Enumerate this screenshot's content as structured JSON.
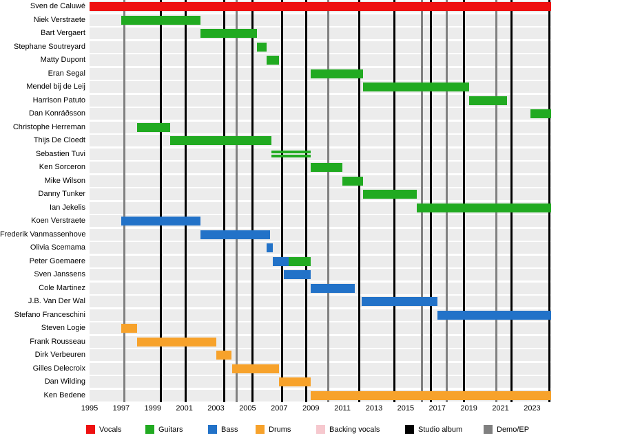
{
  "chart_data": {
    "type": "timeline",
    "x_axis": {
      "min": 1995,
      "max": 2024.2,
      "ticks": [
        1995,
        1997,
        1999,
        2001,
        2003,
        2005,
        2007,
        2009,
        2011,
        2013,
        2015,
        2017,
        2019,
        2021,
        2023
      ]
    },
    "legend": [
      {
        "id": "vocals",
        "label": "Vocals",
        "color": "#ee1111"
      },
      {
        "id": "guitars",
        "label": "Guitars",
        "color": "#21aa21"
      },
      {
        "id": "bass",
        "label": "Bass",
        "color": "#2272c8"
      },
      {
        "id": "drums",
        "label": "Drums",
        "color": "#f7a22b"
      },
      {
        "id": "backing",
        "label": "Backing vocals",
        "color": "#f6c8ce"
      },
      {
        "id": "album",
        "label": "Studio album",
        "color": "#000000"
      },
      {
        "id": "demo",
        "label": "Demo/EP",
        "color": "#808080"
      }
    ],
    "members": [
      {
        "name": "Sven de Caluwé",
        "bars": [
          {
            "role": "vocals",
            "start": 1995,
            "end": 2024.2
          }
        ]
      },
      {
        "name": "Niek Verstraete",
        "bars": [
          {
            "role": "guitars",
            "start": 1997,
            "end": 2002
          }
        ]
      },
      {
        "name": "Bart Vergaert",
        "bars": [
          {
            "role": "guitars",
            "start": 2002,
            "end": 2005.6
          }
        ]
      },
      {
        "name": "Stephane Soutreyard",
        "bars": [
          {
            "role": "guitars",
            "start": 2005.6,
            "end": 2006.2
          }
        ]
      },
      {
        "name": "Matty Dupont",
        "bars": [
          {
            "role": "guitars",
            "start": 2006.2,
            "end": 2007
          }
        ]
      },
      {
        "name": "Eran Segal",
        "bars": [
          {
            "role": "guitars",
            "start": 2009,
            "end": 2012.3
          }
        ]
      },
      {
        "name": "Mendel bij de Leij",
        "bars": [
          {
            "role": "guitars",
            "start": 2012.3,
            "end": 2019
          }
        ]
      },
      {
        "name": "Harrison Patuto",
        "bars": [
          {
            "role": "guitars",
            "start": 2019,
            "end": 2021.4
          }
        ]
      },
      {
        "name": "Dan Konráðsson",
        "bars": [
          {
            "role": "guitars",
            "start": 2022.9,
            "end": 2024.2
          }
        ]
      },
      {
        "name": "Christophe Herreman",
        "bars": [
          {
            "role": "guitars",
            "start": 1998,
            "end": 2000.1
          }
        ]
      },
      {
        "name": "Thijs De Cloedt",
        "bars": [
          {
            "role": "guitars",
            "start": 2000.1,
            "end": 2006.5
          }
        ]
      },
      {
        "name": "Sebastien Tuvi",
        "bars": [
          {
            "role": "guitars",
            "start": 2006.5,
            "end": 2009,
            "style": "double"
          }
        ]
      },
      {
        "name": "Ken Sorceron",
        "bars": [
          {
            "role": "guitars",
            "start": 2009,
            "end": 2011
          }
        ]
      },
      {
        "name": "Mike Wilson",
        "bars": [
          {
            "role": "guitars",
            "start": 2011,
            "end": 2012.3
          }
        ]
      },
      {
        "name": "Danny Tunker",
        "bars": [
          {
            "role": "guitars",
            "start": 2012.3,
            "end": 2015.7
          }
        ]
      },
      {
        "name": "Ian Jekelis",
        "bars": [
          {
            "role": "guitars",
            "start": 2015.7,
            "end": 2024.2
          }
        ]
      },
      {
        "name": "Koen Verstraete",
        "bars": [
          {
            "role": "bass",
            "start": 1997,
            "end": 2002
          }
        ]
      },
      {
        "name": "Frederik Vanmassenhove",
        "bars": [
          {
            "role": "bass",
            "start": 2002,
            "end": 2006.4
          }
        ]
      },
      {
        "name": "Olivia Scemama",
        "bars": [
          {
            "role": "bass",
            "start": 2006.2,
            "end": 2006.6
          }
        ]
      },
      {
        "name": "Peter Goemaere",
        "bars": [
          {
            "role": "bass",
            "start": 2006.6,
            "end": 2007.6
          },
          {
            "role": "guitars",
            "start": 2007.6,
            "end": 2009
          }
        ]
      },
      {
        "name": "Sven Janssens",
        "bars": [
          {
            "role": "bass",
            "start": 2007.3,
            "end": 2009
          }
        ]
      },
      {
        "name": "Cole Martinez",
        "bars": [
          {
            "role": "bass",
            "start": 2009,
            "end": 2011.8
          }
        ]
      },
      {
        "name": "J.B. Van Der Wal",
        "bars": [
          {
            "role": "bass",
            "start": 2012.2,
            "end": 2017
          }
        ]
      },
      {
        "name": "Stefano Franceschini",
        "bars": [
          {
            "role": "bass",
            "start": 2017,
            "end": 2024.2
          }
        ]
      },
      {
        "name": "Steven Logie",
        "bars": [
          {
            "role": "drums",
            "start": 1997,
            "end": 1998
          }
        ]
      },
      {
        "name": "Frank Rousseau",
        "bars": [
          {
            "role": "drums",
            "start": 1998,
            "end": 2003
          }
        ]
      },
      {
        "name": "Dirk Verbeuren",
        "bars": [
          {
            "role": "drums",
            "start": 2003,
            "end": 2004
          }
        ]
      },
      {
        "name": "Gilles Delecroix",
        "bars": [
          {
            "role": "drums",
            "start": 2004,
            "end": 2007
          }
        ]
      },
      {
        "name": "Dan Wilding",
        "bars": [
          {
            "role": "drums",
            "start": 2007,
            "end": 2009
          }
        ]
      },
      {
        "name": "Ken Bedene",
        "bars": [
          {
            "role": "drums",
            "start": 2009,
            "end": 2024.2
          }
        ]
      }
    ],
    "releases": [
      {
        "year": 1997.2,
        "type": "demo"
      },
      {
        "year": 1999.5,
        "type": "album"
      },
      {
        "year": 2001.1,
        "type": "album"
      },
      {
        "year": 2003.5,
        "type": "album"
      },
      {
        "year": 2004.3,
        "type": "demo"
      },
      {
        "year": 2005.3,
        "type": "album"
      },
      {
        "year": 2007.2,
        "type": "album"
      },
      {
        "year": 2008.7,
        "type": "album"
      },
      {
        "year": 2010.1,
        "type": "demo"
      },
      {
        "year": 2012.05,
        "type": "album"
      },
      {
        "year": 2014.3,
        "type": "album"
      },
      {
        "year": 2016.05,
        "type": "demo"
      },
      {
        "year": 2016.6,
        "type": "album"
      },
      {
        "year": 2017.6,
        "type": "demo"
      },
      {
        "year": 2018.7,
        "type": "album"
      },
      {
        "year": 2020.75,
        "type": "demo"
      },
      {
        "year": 2021.7,
        "type": "album"
      },
      {
        "year": 2024.1,
        "type": "album"
      }
    ]
  }
}
